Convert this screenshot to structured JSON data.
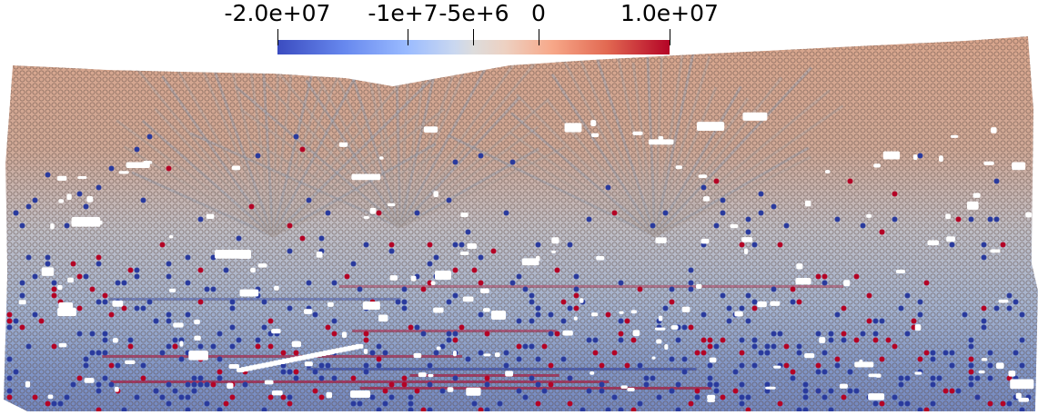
{
  "colorbar": {
    "tick_labels": [
      "-2.0e+07",
      "-1e+7",
      "-5e+6",
      "0",
      "1.0e+07"
    ],
    "tick_values": [
      -20000000,
      -10000000,
      -5000000,
      0,
      10000000
    ],
    "range": [
      -20000000,
      10000000
    ],
    "colormap": [
      "#3b4cc0",
      "#dddcdc",
      "#b40426"
    ]
  },
  "particles": {
    "top_color": "#d4a48c",
    "mid_color": "#b7bfcf",
    "low_color": "#8aa0c8",
    "stress_high": "#b40426",
    "stress_low": "#2a3b9e",
    "outline": "#6d5148",
    "void_color": "#ffffff"
  }
}
